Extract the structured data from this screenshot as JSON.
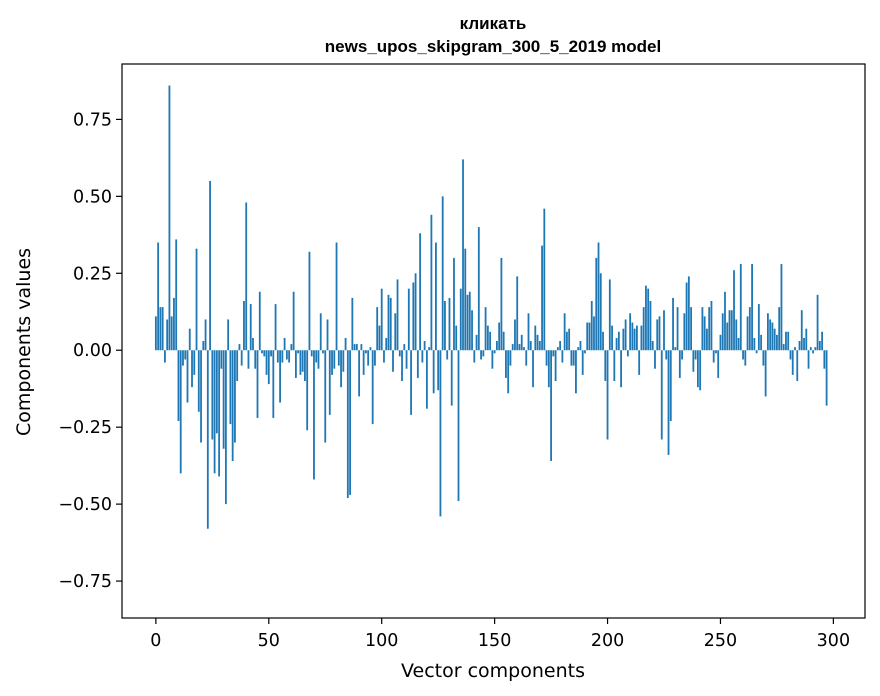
{
  "chart_data": {
    "type": "bar",
    "title_line1": "кликать",
    "title_line2": "news_upos_skipgram_300_5_2019 model",
    "xlabel": "Vector components",
    "ylabel": "Components values",
    "xlim": [
      -15,
      314
    ],
    "ylim": [
      -0.87,
      0.93
    ],
    "xticks": [
      0,
      50,
      100,
      150,
      200,
      250,
      300
    ],
    "xtick_labels": [
      "0",
      "50",
      "100",
      "150",
      "200",
      "250",
      "300"
    ],
    "yticks": [
      -0.75,
      -0.5,
      -0.25,
      0.0,
      0.25,
      0.5,
      0.75
    ],
    "ytick_labels": [
      "−0.75",
      "−0.50",
      "−0.25",
      "0.00",
      "0.25",
      "0.50",
      "0.75"
    ],
    "grid": false,
    "color": "#1f77b4",
    "values": [
      0.11,
      0.35,
      0.14,
      0.14,
      -0.04,
      0.1,
      0.86,
      0.11,
      0.17,
      0.36,
      -0.23,
      -0.4,
      -0.05,
      -0.03,
      -0.17,
      0.07,
      -0.12,
      -0.08,
      0.33,
      -0.2,
      -0.3,
      0.03,
      0.1,
      -0.58,
      0.55,
      -0.29,
      -0.4,
      -0.27,
      -0.41,
      -0.06,
      -0.32,
      -0.5,
      0.1,
      -0.24,
      -0.36,
      -0.3,
      -0.1,
      0.02,
      -0.05,
      0.16,
      0.48,
      -0.06,
      0.15,
      0.04,
      -0.06,
      -0.22,
      0.19,
      -0.01,
      -0.02,
      -0.08,
      -0.11,
      -0.02,
      -0.22,
      0.15,
      -0.04,
      -0.17,
      -0.04,
      0.04,
      -0.03,
      -0.04,
      0.02,
      0.19,
      -0.09,
      -0.01,
      -0.08,
      -0.07,
      -0.1,
      -0.26,
      0.32,
      -0.02,
      -0.42,
      -0.04,
      -0.06,
      0.12,
      -0.01,
      -0.3,
      0.1,
      -0.21,
      -0.08,
      -0.06,
      0.35,
      -0.05,
      -0.12,
      -0.07,
      0.04,
      -0.48,
      -0.47,
      0.17,
      0.02,
      0.02,
      -0.15,
      0.02,
      -0.08,
      -0.01,
      -0.05,
      0.01,
      -0.24,
      -0.05,
      0.14,
      0.08,
      0.2,
      -0.04,
      0.04,
      0.18,
      0.17,
      -0.07,
      0.12,
      0.23,
      -0.02,
      -0.1,
      0.02,
      -0.06,
      0.2,
      -0.21,
      0.22,
      0.25,
      -0.09,
      0.38,
      -0.04,
      0.03,
      -0.19,
      0.01,
      0.44,
      -0.14,
      0.35,
      -0.13,
      -0.54,
      0.5,
      0.16,
      -0.03,
      0.17,
      -0.18,
      0.3,
      0.08,
      -0.49,
      0.2,
      0.62,
      0.33,
      0.18,
      0.19,
      0.13,
      -0.04,
      0.05,
      0.4,
      -0.03,
      -0.02,
      0.14,
      0.08,
      0.06,
      -0.06,
      -0.01,
      0.03,
      0.09,
      0.3,
      0.06,
      -0.09,
      -0.14,
      -0.05,
      0.02,
      0.1,
      0.24,
      0.02,
      0.05,
      0.01,
      -0.05,
      0.12,
      0.03,
      -0.12,
      0.08,
      0.05,
      0.03,
      0.34,
      0.46,
      -0.05,
      -0.12,
      -0.36,
      -0.02,
      -0.1,
      0.01,
      0.03,
      -0.04,
      0.12,
      0.06,
      0.07,
      -0.05,
      -0.05,
      -0.14,
      0.01,
      0.03,
      -0.08,
      -0.01,
      0.09,
      0.09,
      0.16,
      0.11,
      0.3,
      0.35,
      0.25,
      0.06,
      -0.1,
      -0.29,
      0.23,
      0.08,
      -0.1,
      0.04,
      0.06,
      -0.12,
      0.07,
      0.1,
      -0.02,
      0.12,
      0.09,
      0.07,
      0.08,
      -0.08,
      0.08,
      0.14,
      0.21,
      0.2,
      0.16,
      0.03,
      -0.06,
      0.1,
      0.11,
      -0.29,
      0.13,
      -0.03,
      -0.34,
      -0.23,
      0.17,
      0.01,
      0.14,
      -0.09,
      -0.03,
      0.12,
      0.22,
      0.24,
      0.14,
      -0.07,
      -0.03,
      -0.12,
      -0.13,
      0.14,
      0.11,
      0.07,
      0.14,
      0.16,
      -0.04,
      -0.01,
      -0.09,
      0.05,
      0.12,
      0.19,
      0.09,
      0.13,
      0.13,
      0.26,
      0.1,
      0.04,
      0.28,
      -0.03,
      -0.05,
      0.11,
      0.14,
      0.28,
      0.04,
      -0.01,
      0.15,
      0.05,
      -0.05,
      -0.15,
      0.12,
      0.1,
      0.09,
      0.07,
      0.05,
      0.14,
      0.28,
      0.02,
      0.06,
      0.06,
      -0.03,
      -0.08,
      0.01,
      -0.1,
      0.03,
      0.13,
      0.04,
      0.07,
      -0.06,
      0.01,
      -0.01,
      0.01,
      0.18,
      0.03,
      0.06,
      -0.06,
      -0.18
    ]
  }
}
